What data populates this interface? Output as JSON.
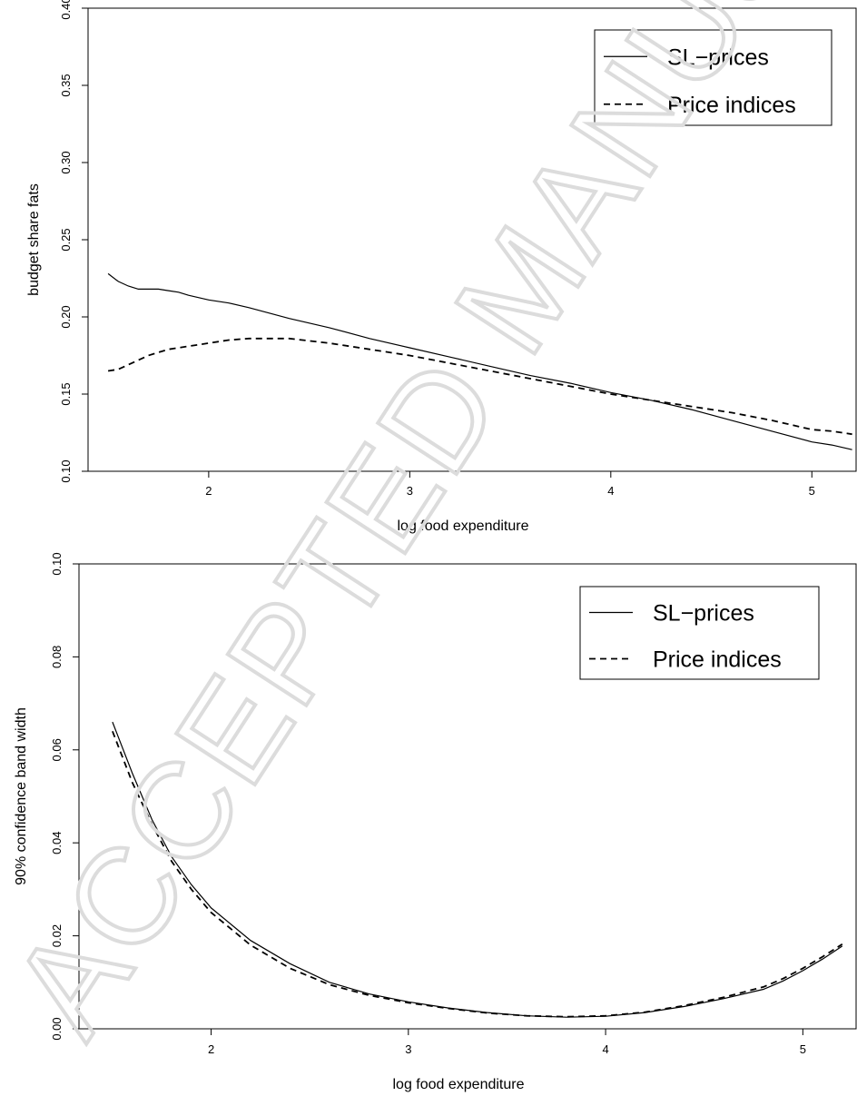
{
  "watermark": "ACCEPTED MANUSCRIPT",
  "chart_data": [
    {
      "type": "line",
      "xlabel": "log food expenditure",
      "ylabel": "budget share fats",
      "xlim": [
        1.4,
        5.22
      ],
      "ylim": [
        0.1,
        0.4
      ],
      "xticks": [
        2,
        3,
        4,
        5
      ],
      "yticks": [
        0.1,
        0.15,
        0.2,
        0.25,
        0.3,
        0.35,
        0.4
      ],
      "ytick_labels": [
        "0.10",
        "0.15",
        "0.20",
        "0.25",
        "0.30",
        "0.35",
        "0.40"
      ],
      "legend_position": "top-right",
      "grid": false,
      "series": [
        {
          "name": "SL−prices",
          "style": "solid",
          "x": [
            1.5,
            1.55,
            1.6,
            1.65,
            1.7,
            1.75,
            1.8,
            1.85,
            1.9,
            2.0,
            2.1,
            2.2,
            2.4,
            2.6,
            2.8,
            3.0,
            3.2,
            3.4,
            3.6,
            3.8,
            4.0,
            4.2,
            4.4,
            4.6,
            4.8,
            5.0,
            5.1,
            5.2
          ],
          "y": [
            0.228,
            0.223,
            0.22,
            0.218,
            0.218,
            0.218,
            0.217,
            0.216,
            0.214,
            0.211,
            0.209,
            0.206,
            0.199,
            0.193,
            0.186,
            0.18,
            0.174,
            0.168,
            0.162,
            0.157,
            0.151,
            0.146,
            0.14,
            0.133,
            0.126,
            0.119,
            0.117,
            0.114
          ]
        },
        {
          "name": "Price indices",
          "style": "dashed",
          "x": [
            1.5,
            1.55,
            1.6,
            1.7,
            1.8,
            1.9,
            2.0,
            2.1,
            2.2,
            2.3,
            2.4,
            2.6,
            2.8,
            3.0,
            3.2,
            3.4,
            3.6,
            3.8,
            4.0,
            4.2,
            4.4,
            4.6,
            4.8,
            5.0,
            5.1,
            5.2
          ],
          "y": [
            0.165,
            0.166,
            0.169,
            0.175,
            0.179,
            0.181,
            0.183,
            0.185,
            0.186,
            0.186,
            0.186,
            0.183,
            0.179,
            0.175,
            0.17,
            0.165,
            0.16,
            0.155,
            0.15,
            0.146,
            0.142,
            0.138,
            0.133,
            0.127,
            0.126,
            0.124
          ]
        }
      ]
    },
    {
      "type": "line",
      "xlabel": "log food expenditure",
      "ylabel": "90% confidence band width",
      "xlim": [
        1.33,
        5.27
      ],
      "ylim": [
        0.0,
        0.1
      ],
      "xticks": [
        2,
        3,
        4,
        5
      ],
      "yticks": [
        0.0,
        0.02,
        0.04,
        0.06,
        0.08,
        0.1
      ],
      "ytick_labels": [
        "0.00",
        "0.02",
        "0.04",
        "0.06",
        "0.08",
        "0.10"
      ],
      "legend_position": "top-right",
      "grid": false,
      "series": [
        {
          "name": "SL−prices",
          "style": "solid",
          "x": [
            1.5,
            1.6,
            1.7,
            1.8,
            1.9,
            2.0,
            2.2,
            2.4,
            2.6,
            2.8,
            3.0,
            3.2,
            3.4,
            3.6,
            3.8,
            4.0,
            4.2,
            4.4,
            4.6,
            4.8,
            4.9,
            5.0,
            5.1,
            5.2
          ],
          "y": [
            0.066,
            0.055,
            0.045,
            0.037,
            0.031,
            0.026,
            0.019,
            0.014,
            0.01,
            0.0075,
            0.0058,
            0.0045,
            0.0035,
            0.0028,
            0.0025,
            0.0027,
            0.0035,
            0.0048,
            0.0065,
            0.0085,
            0.0103,
            0.0125,
            0.015,
            0.0178
          ]
        },
        {
          "name": "Price indices",
          "style": "dashed",
          "x": [
            1.5,
            1.6,
            1.7,
            1.8,
            1.9,
            2.0,
            2.2,
            2.4,
            2.6,
            2.8,
            3.0,
            3.2,
            3.4,
            3.6,
            3.8,
            4.0,
            4.2,
            4.4,
            4.6,
            4.8,
            4.9,
            5.0,
            5.1,
            5.2
          ],
          "y": [
            0.064,
            0.053,
            0.044,
            0.036,
            0.03,
            0.025,
            0.018,
            0.013,
            0.0095,
            0.0072,
            0.0056,
            0.0044,
            0.0034,
            0.0028,
            0.0026,
            0.0028,
            0.0036,
            0.005,
            0.0068,
            0.009,
            0.0108,
            0.013,
            0.0155,
            0.0182
          ]
        }
      ]
    }
  ]
}
